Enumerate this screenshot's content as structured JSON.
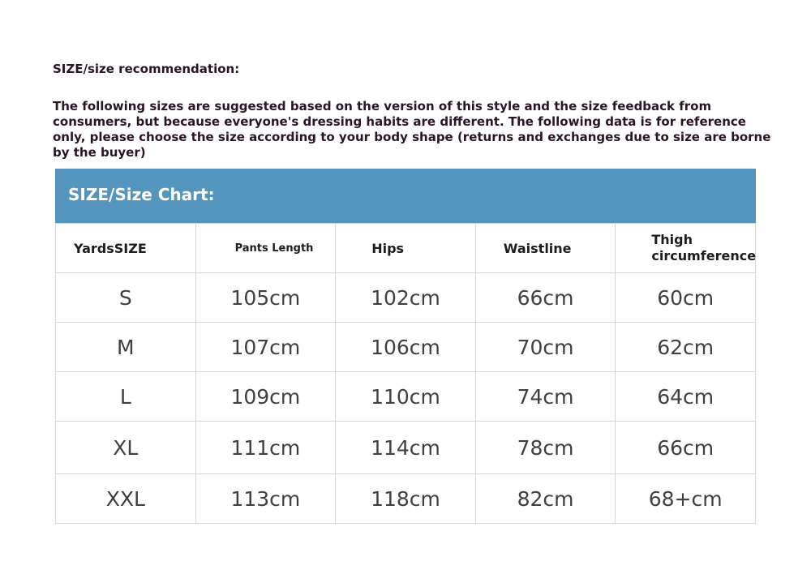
{
  "heading": "SIZE/size recommendation:",
  "note": "The following sizes are suggested based on the version of this style and the size feedback from consumers, but because everyone's dressing habits are different. The following data is for reference only, please choose the size according to your body shape (returns and exchanges due to size are borne by the buyer)",
  "chart_title": "SIZE/Size Chart:",
  "header_color": "#5395bd",
  "columns": [
    "YardsSIZE",
    "Pants Length",
    "Hips",
    "Waistline",
    "Thigh circumference"
  ],
  "rows": [
    [
      "S",
      "105cm",
      "102cm",
      "66cm",
      "60cm"
    ],
    [
      "M",
      "107cm",
      "106cm",
      "70cm",
      "62cm"
    ],
    [
      "L",
      "109cm",
      "110cm",
      "74cm",
      "64cm"
    ],
    [
      "XL",
      "111cm",
      "114cm",
      "78cm",
      "66cm"
    ],
    [
      "XXL",
      "113cm",
      "118cm",
      "82cm",
      "68+cm"
    ]
  ]
}
